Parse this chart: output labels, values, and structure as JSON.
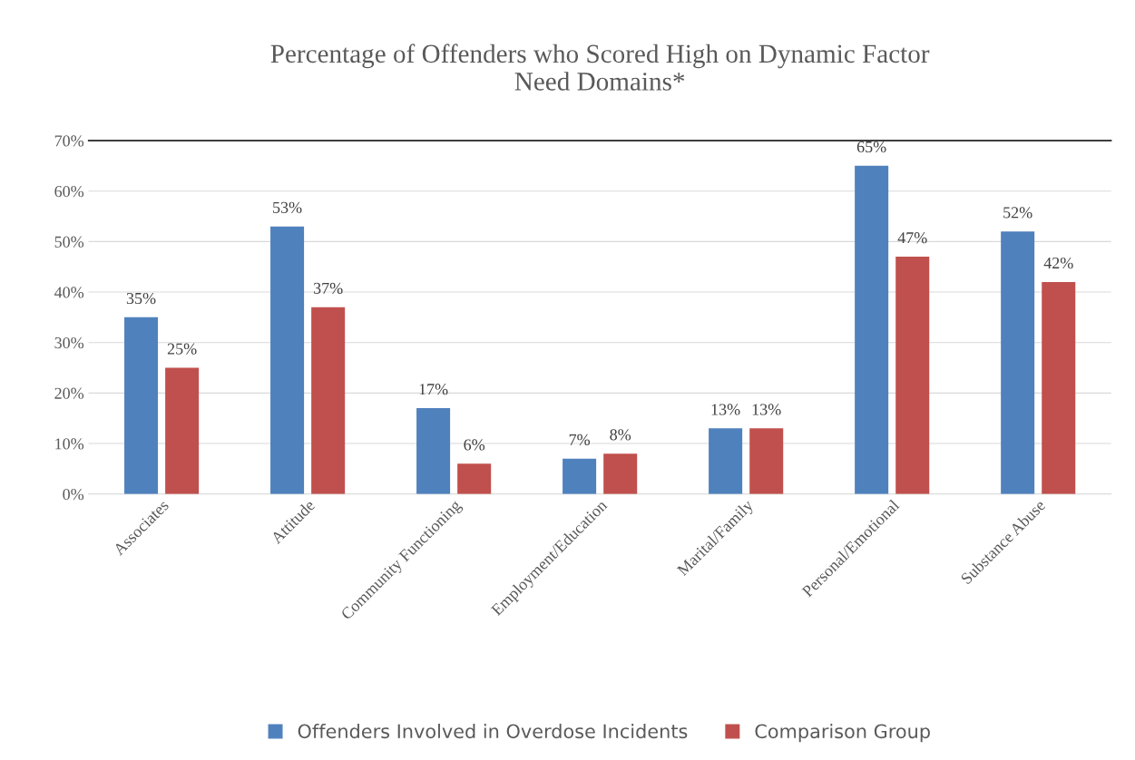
{
  "chart_data": {
    "type": "bar",
    "title": "Percentage of Offenders who Scored High on Dynamic Factor\nNeed Domains*",
    "categories": [
      "Associates",
      "Attitude",
      "Community Functioning",
      "Employment/Education",
      "Marital/Family",
      "Personal/Emotional",
      "Substance Abuse"
    ],
    "series": [
      {
        "name": "Offenders Involved in Overdose Incidents",
        "color": "#4f81bd",
        "values": [
          35,
          53,
          17,
          7,
          13,
          65,
          52
        ],
        "value_labels": [
          "35%",
          "53%",
          "17%",
          "7%",
          "13%",
          "65%",
          "52%"
        ]
      },
      {
        "name": "Comparison Group",
        "color": "#c0504d",
        "values": [
          25,
          37,
          6,
          8,
          13,
          47,
          42
        ],
        "value_labels": [
          "25%",
          "37%",
          "6%",
          "8%",
          "13%",
          "47%",
          "42%"
        ]
      }
    ],
    "ylim": [
      0,
      70
    ],
    "yticks": [
      {
        "value": 0,
        "label": "0%"
      },
      {
        "value": 10,
        "label": "10%"
      },
      {
        "value": 20,
        "label": "20%"
      },
      {
        "value": 30,
        "label": "30%"
      },
      {
        "value": 40,
        "label": "40%"
      },
      {
        "value": 50,
        "label": "50%"
      },
      {
        "value": 60,
        "label": "60%"
      },
      {
        "value": 70,
        "label": "70%"
      }
    ],
    "ref_lines": [
      {
        "axis": "y",
        "value": 70,
        "color": "#000000"
      }
    ],
    "grid": "y",
    "legend": "bottom"
  }
}
